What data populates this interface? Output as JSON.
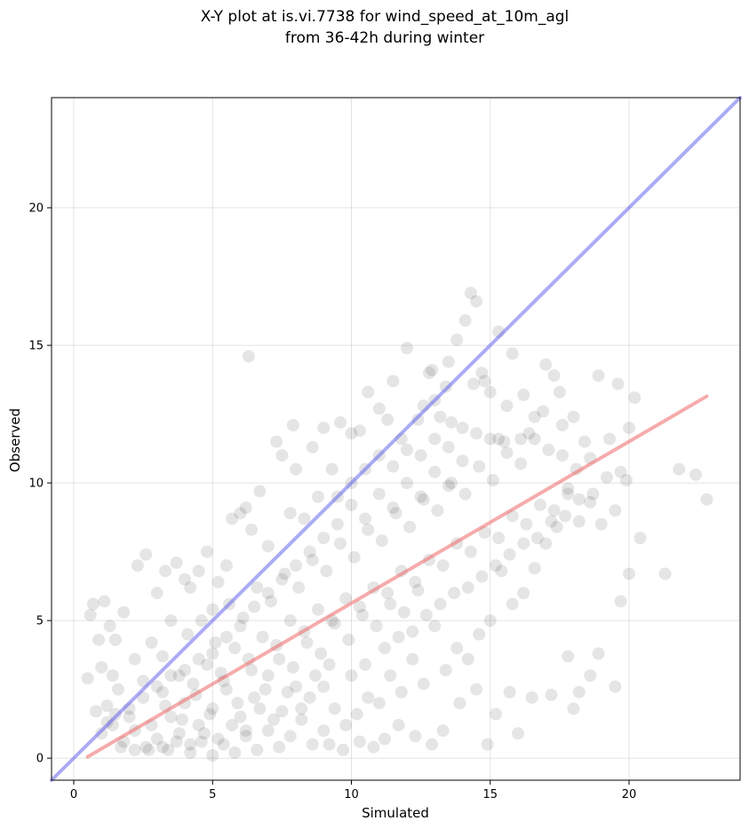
{
  "chart_data": {
    "type": "scatter",
    "title_lines": [
      "X-Y plot at is.vi.7738 for wind_speed_at_10m_agl",
      "from 36-42h during winter"
    ],
    "xlabel": "Simulated",
    "ylabel": "Observed",
    "xlim": [
      -0.8,
      24.0
    ],
    "ylim": [
      -0.8,
      24.0
    ],
    "xticks": [
      0,
      5,
      10,
      15,
      20
    ],
    "yticks": [
      0,
      5,
      10,
      15,
      20
    ],
    "xtick_labels": [
      "0",
      "5",
      "10",
      "15",
      "20"
    ],
    "ytick_labels": [
      "0",
      "5",
      "10",
      "15",
      "20"
    ],
    "grid": true,
    "point_color": "#000000",
    "point_alpha": 0.1,
    "identity_line": {
      "x": [
        -0.8,
        24.0
      ],
      "y": [
        -0.8,
        24.0
      ],
      "color": "#6666ee"
    },
    "fit_line": {
      "x": [
        0.5,
        22.8
      ],
      "y": [
        0.05,
        13.15
      ],
      "color": "#ee6666"
    },
    "points": [
      [
        0.5,
        2.9
      ],
      [
        0.6,
        5.2
      ],
      [
        0.7,
        5.6
      ],
      [
        0.8,
        1.7
      ],
      [
        0.9,
        4.3
      ],
      [
        1.0,
        3.3
      ],
      [
        1.1,
        5.7
      ],
      [
        1.2,
        1.9
      ],
      [
        1.3,
        4.8
      ],
      [
        1.4,
        3.0
      ],
      [
        1.5,
        4.3
      ],
      [
        1.6,
        2.5
      ],
      [
        1.8,
        5.3
      ],
      [
        2.0,
        1.5
      ],
      [
        2.2,
        3.6
      ],
      [
        2.3,
        7.0
      ],
      [
        2.5,
        2.8
      ],
      [
        2.6,
        7.4
      ],
      [
        2.8,
        4.2
      ],
      [
        3.0,
        6.0
      ],
      [
        3.2,
        3.7
      ],
      [
        3.3,
        6.8
      ],
      [
        3.5,
        5.0
      ],
      [
        3.7,
        7.1
      ],
      [
        4.0,
        6.5
      ],
      [
        4.2,
        6.2
      ],
      [
        4.5,
        6.8
      ],
      [
        4.8,
        7.5
      ],
      [
        5.0,
        5.4
      ],
      [
        5.2,
        6.4
      ],
      [
        5.5,
        7.0
      ],
      [
        5.7,
        8.7
      ],
      [
        6.0,
        8.9
      ],
      [
        6.2,
        9.1
      ],
      [
        6.3,
        14.6
      ],
      [
        6.4,
        8.3
      ],
      [
        6.7,
        9.7
      ],
      [
        7.0,
        7.7
      ],
      [
        7.3,
        11.5
      ],
      [
        7.5,
        11.0
      ],
      [
        7.8,
        8.9
      ],
      [
        7.9,
        12.1
      ],
      [
        8.0,
        10.5
      ],
      [
        8.3,
        8.7
      ],
      [
        8.6,
        11.3
      ],
      [
        8.8,
        9.5
      ],
      [
        9.0,
        12.0
      ],
      [
        9.3,
        10.5
      ],
      [
        9.6,
        12.2
      ],
      [
        10.0,
        11.8
      ],
      [
        10.3,
        11.9
      ],
      [
        10.6,
        13.3
      ],
      [
        11.0,
        12.7
      ],
      [
        11.3,
        12.3
      ],
      [
        11.5,
        13.7
      ],
      [
        11.8,
        11.6
      ],
      [
        12.0,
        14.9
      ],
      [
        12.4,
        12.3
      ],
      [
        12.8,
        14.0
      ],
      [
        13.0,
        13.0
      ],
      [
        13.4,
        13.5
      ],
      [
        13.6,
        12.2
      ],
      [
        13.8,
        15.2
      ],
      [
        14.1,
        15.9
      ],
      [
        14.3,
        16.9
      ],
      [
        14.5,
        16.6
      ],
      [
        14.7,
        14.0
      ],
      [
        15.0,
        13.3
      ],
      [
        15.3,
        15.5
      ],
      [
        15.8,
        14.7
      ],
      [
        16.2,
        13.2
      ],
      [
        16.6,
        12.4
      ],
      [
        17.0,
        14.3
      ],
      [
        17.3,
        13.9
      ],
      [
        17.6,
        12.1
      ],
      [
        18.0,
        12.4
      ],
      [
        18.4,
        11.5
      ],
      [
        18.9,
        13.9
      ],
      [
        19.3,
        11.6
      ],
      [
        19.6,
        13.6
      ],
      [
        20.0,
        12.0
      ],
      [
        20.2,
        13.1
      ],
      [
        21.3,
        6.7
      ],
      [
        21.8,
        10.5
      ],
      [
        22.4,
        10.3
      ],
      [
        22.8,
        9.4
      ],
      [
        20.4,
        8.0
      ],
      [
        19.9,
        10.1
      ],
      [
        19.5,
        9.0
      ],
      [
        19.0,
        8.5
      ],
      [
        18.6,
        9.3
      ],
      [
        18.2,
        8.6
      ],
      [
        17.8,
        9.6
      ],
      [
        17.4,
        8.4
      ],
      [
        17.0,
        7.8
      ],
      [
        16.6,
        6.9
      ],
      [
        16.2,
        6.0
      ],
      [
        15.8,
        5.6
      ],
      [
        15.4,
        6.8
      ],
      [
        15.0,
        5.0
      ],
      [
        14.6,
        4.5
      ],
      [
        14.2,
        3.6
      ],
      [
        13.8,
        4.0
      ],
      [
        13.4,
        3.2
      ],
      [
        13.0,
        4.8
      ],
      [
        12.6,
        2.7
      ],
      [
        12.2,
        3.6
      ],
      [
        11.8,
        2.4
      ],
      [
        11.4,
        3.0
      ],
      [
        11.0,
        2.0
      ],
      [
        10.6,
        2.2
      ],
      [
        10.2,
        1.6
      ],
      [
        9.8,
        1.2
      ],
      [
        9.4,
        1.8
      ],
      [
        9.0,
        1.0
      ],
      [
        8.6,
        0.5
      ],
      [
        8.2,
        1.4
      ],
      [
        7.8,
        0.8
      ],
      [
        7.4,
        0.4
      ],
      [
        7.0,
        1.0
      ],
      [
        6.6,
        0.3
      ],
      [
        6.2,
        0.8
      ],
      [
        5.8,
        0.2
      ],
      [
        5.4,
        0.5
      ],
      [
        5.0,
        0.1
      ],
      [
        4.6,
        0.6
      ],
      [
        4.2,
        0.2
      ],
      [
        3.8,
        0.9
      ],
      [
        3.4,
        0.3
      ],
      [
        3.0,
        0.7
      ],
      [
        2.6,
        0.4
      ],
      [
        2.2,
        1.0
      ],
      [
        1.8,
        0.6
      ],
      [
        1.4,
        1.2
      ],
      [
        1.0,
        0.9
      ],
      [
        15.7,
        2.4
      ],
      [
        16.5,
        2.2
      ],
      [
        17.2,
        2.3
      ],
      [
        17.8,
        3.7
      ],
      [
        18.2,
        2.4
      ],
      [
        18.6,
        3.0
      ],
      [
        18.9,
        3.8
      ],
      [
        19.5,
        2.6
      ],
      [
        19.7,
        5.7
      ],
      [
        20.0,
        6.7
      ],
      [
        18.0,
        1.8
      ],
      [
        16.0,
        0.9
      ],
      [
        14.9,
        0.5
      ],
      [
        15.2,
        1.6
      ],
      [
        14.5,
        2.5
      ],
      [
        13.9,
        2.0
      ],
      [
        13.3,
        1.0
      ],
      [
        12.9,
        0.5
      ],
      [
        12.3,
        0.8
      ],
      [
        11.7,
        1.2
      ],
      [
        11.2,
        0.7
      ],
      [
        10.8,
        0.4
      ],
      [
        10.3,
        0.6
      ],
      [
        9.7,
        0.3
      ],
      [
        9.2,
        0.5
      ],
      [
        3.5,
        1.5
      ],
      [
        4.0,
        2.0
      ],
      [
        4.5,
        1.2
      ],
      [
        5.0,
        1.8
      ],
      [
        5.5,
        2.5
      ],
      [
        6.0,
        1.5
      ],
      [
        6.5,
        2.2
      ],
      [
        7.0,
        3.0
      ],
      [
        7.5,
        1.7
      ],
      [
        8.0,
        2.6
      ],
      [
        3.2,
        2.4
      ],
      [
        3.8,
        3.0
      ],
      [
        4.3,
        2.7
      ],
      [
        4.8,
        3.4
      ],
      [
        5.3,
        3.1
      ],
      [
        5.8,
        4.0
      ],
      [
        6.3,
        3.6
      ],
      [
        6.8,
        4.4
      ],
      [
        7.3,
        4.1
      ],
      [
        7.8,
        5.0
      ],
      [
        8.3,
        4.6
      ],
      [
        8.8,
        5.4
      ],
      [
        9.3,
        5.0
      ],
      [
        9.8,
        5.8
      ],
      [
        10.3,
        5.5
      ],
      [
        10.8,
        6.2
      ],
      [
        11.3,
        6.0
      ],
      [
        11.8,
        6.8
      ],
      [
        12.3,
        6.4
      ],
      [
        12.8,
        7.2
      ],
      [
        13.3,
        7.0
      ],
      [
        13.8,
        7.8
      ],
      [
        14.3,
        7.5
      ],
      [
        14.8,
        8.2
      ],
      [
        15.3,
        8.0
      ],
      [
        15.8,
        8.8
      ],
      [
        16.3,
        8.5
      ],
      [
        16.8,
        9.2
      ],
      [
        17.3,
        9.0
      ],
      [
        17.8,
        9.8
      ],
      [
        2.8,
        1.2
      ],
      [
        3.3,
        1.9
      ],
      [
        3.9,
        1.4
      ],
      [
        4.4,
        2.3
      ],
      [
        4.9,
        1.6
      ],
      [
        5.4,
        2.8
      ],
      [
        5.9,
        2.0
      ],
      [
        6.4,
        3.2
      ],
      [
        6.9,
        2.5
      ],
      [
        7.4,
        3.6
      ],
      [
        7.9,
        3.3
      ],
      [
        8.4,
        4.2
      ],
      [
        8.9,
        3.8
      ],
      [
        9.4,
        4.9
      ],
      [
        9.9,
        4.3
      ],
      [
        10.4,
        5.2
      ],
      [
        10.9,
        4.8
      ],
      [
        11.4,
        5.6
      ],
      [
        11.9,
        5.3
      ],
      [
        12.4,
        6.1
      ],
      [
        4.1,
        4.5
      ],
      [
        4.6,
        5.0
      ],
      [
        5.1,
        4.2
      ],
      [
        5.6,
        5.6
      ],
      [
        6.1,
        5.1
      ],
      [
        6.6,
        6.2
      ],
      [
        7.1,
        5.7
      ],
      [
        7.6,
        6.7
      ],
      [
        8.1,
        6.2
      ],
      [
        8.6,
        7.2
      ],
      [
        9.1,
        6.8
      ],
      [
        9.6,
        7.8
      ],
      [
        10.1,
        7.3
      ],
      [
        10.6,
        8.3
      ],
      [
        11.1,
        7.9
      ],
      [
        11.6,
        8.9
      ],
      [
        12.1,
        8.4
      ],
      [
        12.6,
        9.4
      ],
      [
        13.1,
        9.0
      ],
      [
        13.6,
        10.0
      ],
      [
        14.1,
        9.6
      ],
      [
        14.6,
        10.6
      ],
      [
        15.1,
        10.1
      ],
      [
        15.6,
        11.1
      ],
      [
        16.1,
        10.7
      ],
      [
        16.6,
        11.6
      ],
      [
        17.1,
        11.2
      ],
      [
        17.6,
        11.0
      ],
      [
        18.1,
        10.5
      ],
      [
        18.6,
        10.9
      ],
      [
        9.5,
        8.5
      ],
      [
        10.0,
        9.2
      ],
      [
        10.5,
        8.7
      ],
      [
        11.0,
        9.6
      ],
      [
        11.5,
        9.1
      ],
      [
        12.0,
        10.0
      ],
      [
        12.5,
        9.5
      ],
      [
        13.0,
        10.4
      ],
      [
        13.5,
        9.9
      ],
      [
        14.0,
        10.8
      ],
      [
        9.0,
        8.0
      ],
      [
        9.5,
        9.5
      ],
      [
        10.0,
        10.0
      ],
      [
        10.5,
        10.5
      ],
      [
        11.0,
        11.0
      ],
      [
        11.5,
        10.6
      ],
      [
        12.0,
        11.2
      ],
      [
        12.5,
        11.0
      ],
      [
        13.0,
        11.6
      ],
      [
        13.5,
        11.3
      ],
      [
        14.0,
        12.0
      ],
      [
        14.5,
        11.8
      ],
      [
        15.0,
        11.6
      ],
      [
        15.5,
        11.5
      ],
      [
        8.5,
        7.5
      ],
      [
        8.0,
        7.0
      ],
      [
        7.5,
        6.5
      ],
      [
        7.0,
        6.0
      ],
      [
        6.5,
        5.5
      ],
      [
        6.0,
        4.8
      ],
      [
        5.5,
        4.4
      ],
      [
        5.0,
        3.8
      ],
      [
        4.5,
        3.6
      ],
      [
        4.0,
        3.2
      ],
      [
        3.5,
        3.0
      ],
      [
        3.0,
        2.6
      ],
      [
        2.5,
        2.2
      ],
      [
        2.0,
        1.8
      ],
      [
        1.5,
        1.6
      ],
      [
        1.2,
        1.3
      ],
      [
        11.2,
        4.0
      ],
      [
        11.7,
        4.4
      ],
      [
        12.2,
        4.6
      ],
      [
        12.7,
        5.2
      ],
      [
        13.2,
        5.6
      ],
      [
        13.7,
        6.0
      ],
      [
        14.2,
        6.2
      ],
      [
        14.7,
        6.6
      ],
      [
        15.2,
        7.0
      ],
      [
        15.7,
        7.4
      ],
      [
        16.2,
        7.8
      ],
      [
        16.7,
        8.0
      ],
      [
        17.2,
        8.6
      ],
      [
        17.7,
        8.8
      ],
      [
        18.2,
        9.4
      ],
      [
        18.7,
        9.6
      ],
      [
        19.2,
        10.2
      ],
      [
        19.7,
        10.4
      ],
      [
        10.0,
        3.0
      ],
      [
        10.5,
        3.4
      ],
      [
        9.0,
        2.6
      ],
      [
        8.5,
        2.2
      ],
      [
        9.2,
        3.4
      ],
      [
        8.7,
        3.0
      ],
      [
        8.2,
        1.8
      ],
      [
        7.7,
        2.4
      ],
      [
        7.2,
        1.4
      ],
      [
        6.7,
        1.8
      ],
      [
        6.2,
        1.0
      ],
      [
        5.7,
        1.2
      ],
      [
        5.2,
        0.7
      ],
      [
        4.7,
        0.9
      ],
      [
        4.2,
        0.5
      ],
      [
        3.7,
        0.6
      ],
      [
        3.2,
        0.4
      ],
      [
        2.7,
        0.3
      ],
      [
        2.2,
        0.3
      ],
      [
        1.7,
        0.4
      ],
      [
        13.5,
        14.4
      ],
      [
        12.9,
        14.1
      ],
      [
        14.8,
        13.7
      ],
      [
        14.4,
        13.6
      ],
      [
        13.2,
        12.4
      ],
      [
        12.6,
        12.8
      ],
      [
        15.6,
        12.8
      ],
      [
        16.4,
        11.8
      ],
      [
        16.9,
        12.6
      ],
      [
        17.5,
        13.3
      ],
      [
        16.1,
        11.6
      ],
      [
        15.3,
        11.6
      ]
    ]
  }
}
